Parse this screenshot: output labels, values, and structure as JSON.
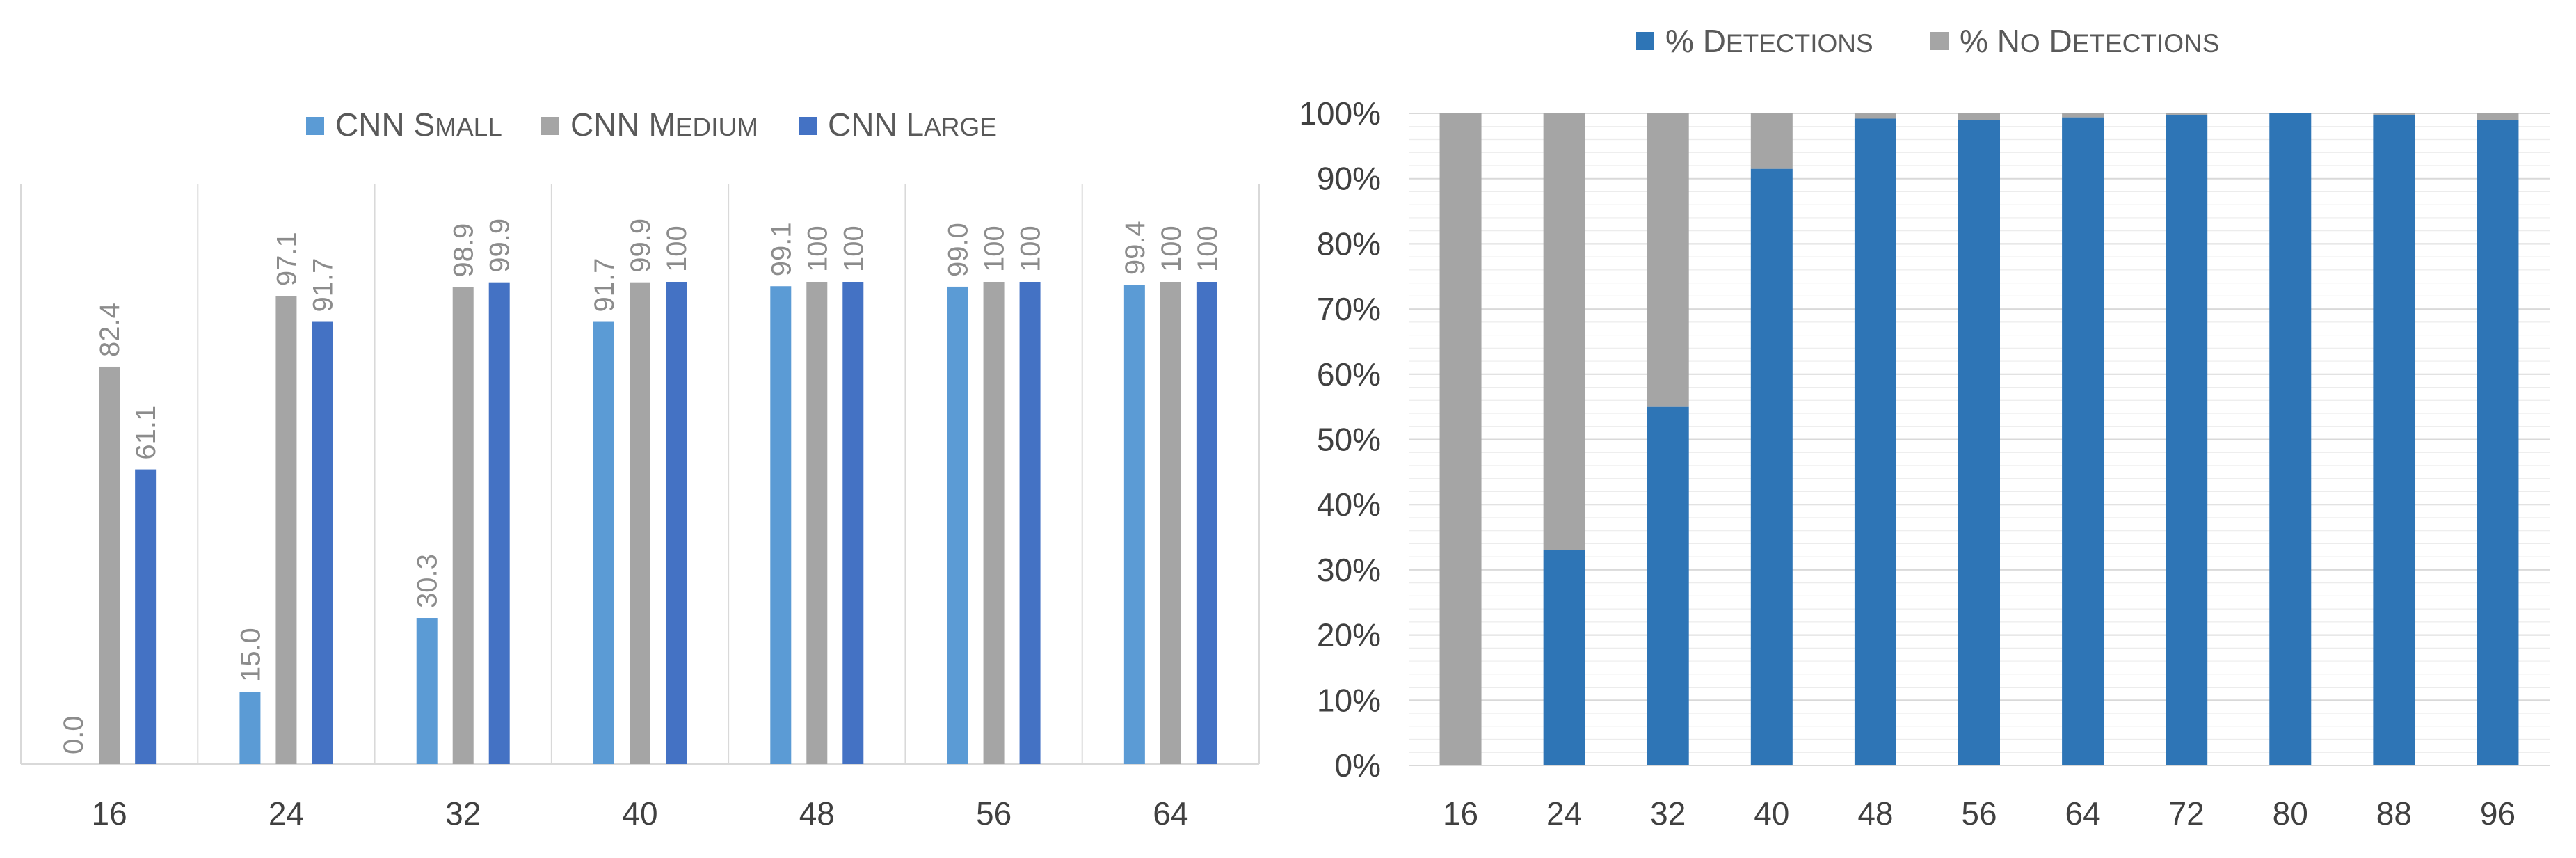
{
  "chart_data": [
    {
      "type": "bar",
      "categories": [
        "16",
        "24",
        "32",
        "40",
        "48",
        "56",
        "64"
      ],
      "series": [
        {
          "name": "CNN Small",
          "color": "#5b9bd5",
          "values": [
            0.0,
            15.0,
            30.3,
            91.7,
            99.1,
            99.0,
            99.4
          ],
          "labels": [
            "0.0",
            "15.0",
            "30.3",
            "91.7",
            "99.1",
            "99.0",
            "99.4"
          ]
        },
        {
          "name": "CNN Medium",
          "color": "#a5a5a5",
          "values": [
            82.4,
            97.1,
            98.9,
            99.9,
            100,
            100,
            100
          ],
          "labels": [
            "82.4",
            "97.1",
            "98.9",
            "99.9",
            "100",
            "100",
            "100"
          ]
        },
        {
          "name": "CNN Large",
          "color": "#4472c4",
          "values": [
            61.1,
            91.7,
            99.9,
            100,
            100,
            100,
            100
          ],
          "labels": [
            "61.1",
            "91.7",
            "99.9",
            "100",
            "100",
            "100",
            "100"
          ]
        }
      ],
      "ylim": [
        0,
        100
      ],
      "legend": "top",
      "grid": false,
      "data_labels": "rotated"
    },
    {
      "type": "bar",
      "stacked": "percent",
      "categories": [
        "16",
        "24",
        "32",
        "40",
        "48",
        "56",
        "64",
        "72",
        "80",
        "88",
        "96"
      ],
      "series": [
        {
          "name": "% Detections",
          "color": "#2e75b6",
          "values": [
            0,
            33,
            55,
            91.5,
            99.2,
            99,
            99.4,
            99.8,
            100,
            99.8,
            99
          ]
        },
        {
          "name": "% No Detections",
          "color": "#a5a5a5",
          "values": [
            100,
            67,
            45,
            8.5,
            0.8,
            1,
            0.6,
            0.2,
            0,
            0.2,
            1
          ]
        }
      ],
      "yticks": [
        "0%",
        "10%",
        "20%",
        "30%",
        "40%",
        "50%",
        "60%",
        "70%",
        "80%",
        "90%",
        "100%"
      ],
      "ylim": [
        0,
        100
      ],
      "legend": "top",
      "grid": true
    }
  ]
}
